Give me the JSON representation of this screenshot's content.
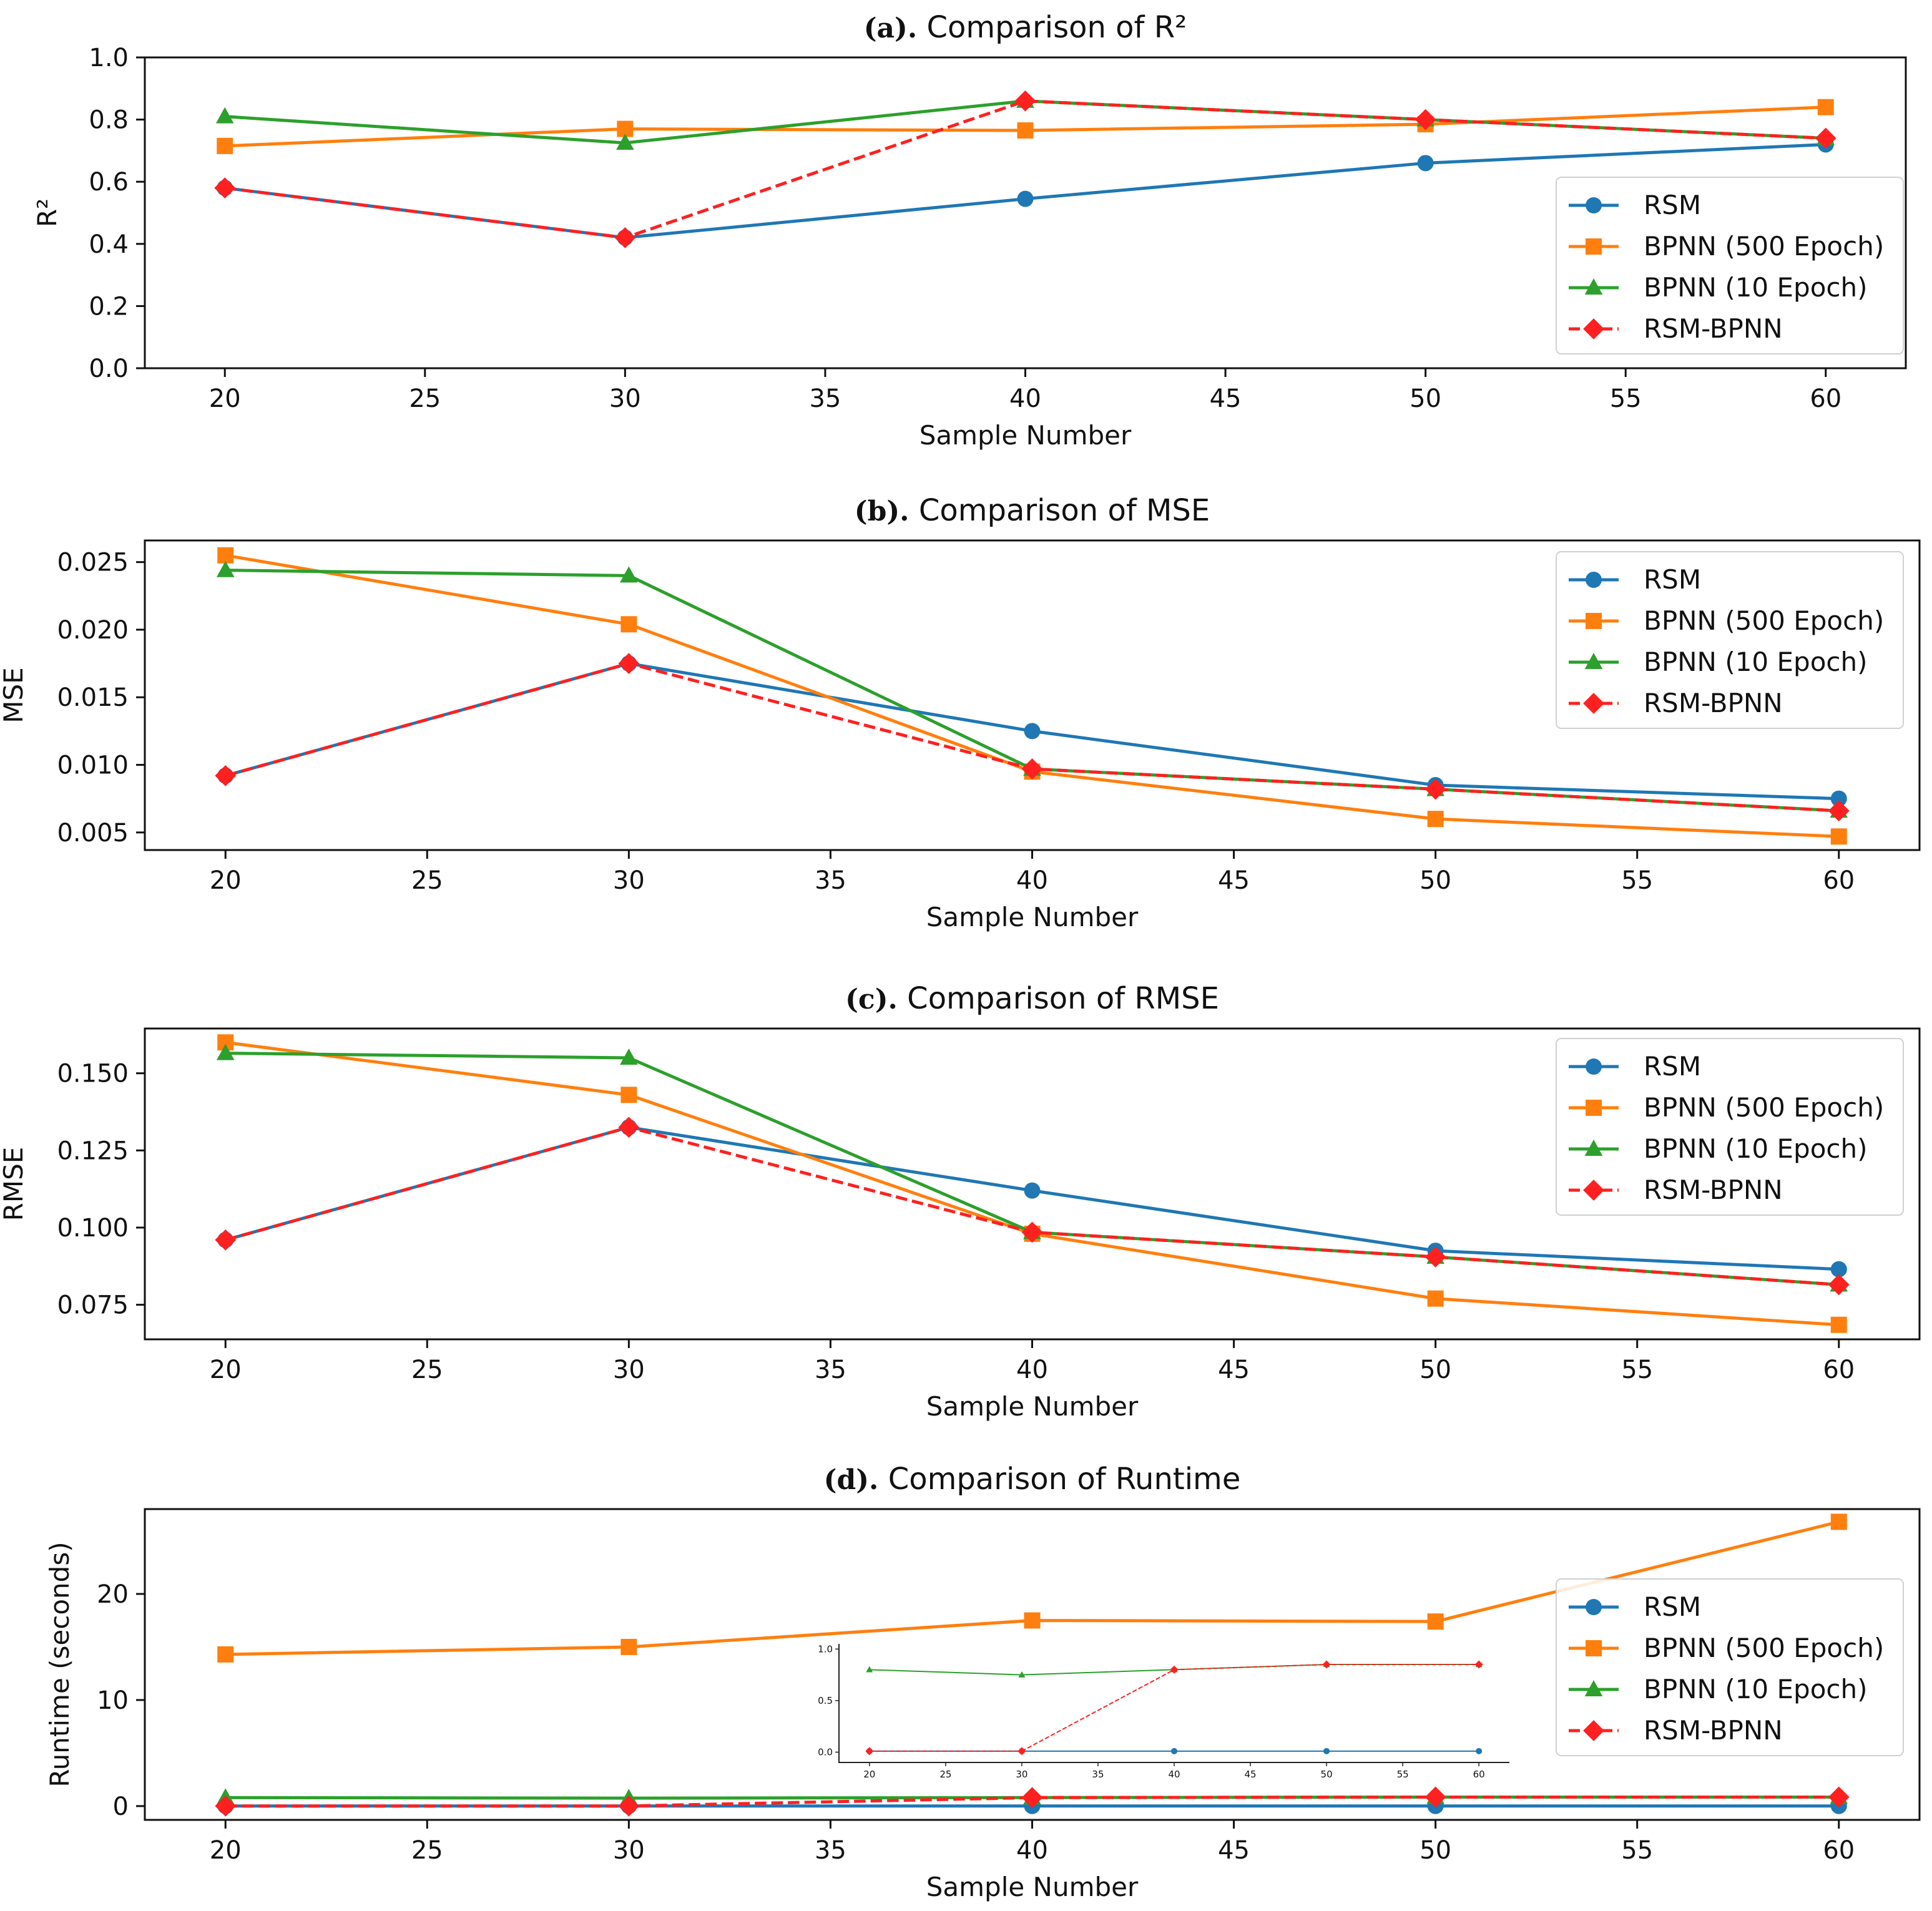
{
  "colors": {
    "RSM": "#1f77b4",
    "BPNN (500 Epoch)": "#ff7f0e",
    "BPNN (10 Epoch)": "#2ca02c",
    "RSM-BPNN": "#ff2020"
  },
  "chart_data": [
    {
      "type": "line",
      "title_prefix": "(a).",
      "title": "Comparison of R²",
      "xlabel": "Sample Number",
      "ylabel": "R²",
      "x": [
        20,
        30,
        40,
        50,
        60
      ],
      "xlim": [
        18,
        62
      ],
      "ylim": [
        0.0,
        1.0
      ],
      "xticks": [
        20,
        25,
        30,
        35,
        40,
        45,
        50,
        55,
        60
      ],
      "yticks": [
        "0.0",
        "0.2",
        "0.4",
        "0.6",
        "0.8",
        "1.0"
      ],
      "legend_position": "lower-right",
      "series": [
        {
          "name": "RSM",
          "marker": "circle",
          "style": "solid",
          "values": [
            0.58,
            0.42,
            0.545,
            0.66,
            0.72
          ]
        },
        {
          "name": "BPNN (500 Epoch)",
          "marker": "square",
          "style": "solid",
          "values": [
            0.715,
            0.77,
            0.765,
            0.785,
            0.84
          ]
        },
        {
          "name": "BPNN (10 Epoch)",
          "marker": "triangle",
          "style": "solid",
          "values": [
            0.81,
            0.725,
            0.86,
            0.8,
            0.74
          ]
        },
        {
          "name": "RSM-BPNN",
          "marker": "diamond",
          "style": "dashed",
          "values": [
            0.58,
            0.42,
            0.86,
            0.8,
            0.74
          ]
        }
      ]
    },
    {
      "type": "line",
      "title_prefix": "(b).",
      "title": "Comparison of MSE",
      "xlabel": "Sample Number",
      "ylabel": "MSE",
      "x": [
        20,
        30,
        40,
        50,
        60
      ],
      "xlim": [
        18,
        62
      ],
      "ylim": [
        0.0037,
        0.0266
      ],
      "xticks": [
        20,
        25,
        30,
        35,
        40,
        45,
        50,
        55,
        60
      ],
      "yticks": [
        "0.005",
        "0.010",
        "0.015",
        "0.020",
        "0.025"
      ],
      "legend_position": "top-right",
      "series": [
        {
          "name": "RSM",
          "marker": "circle",
          "style": "solid",
          "values": [
            0.0092,
            0.0175,
            0.0125,
            0.0085,
            0.0075
          ]
        },
        {
          "name": "BPNN (500 Epoch)",
          "marker": "square",
          "style": "solid",
          "values": [
            0.0255,
            0.0204,
            0.0095,
            0.006,
            0.0047
          ]
        },
        {
          "name": "BPNN (10 Epoch)",
          "marker": "triangle",
          "style": "solid",
          "values": [
            0.0244,
            0.024,
            0.0097,
            0.0082,
            0.0066
          ]
        },
        {
          "name": "RSM-BPNN",
          "marker": "diamond",
          "style": "dashed",
          "values": [
            0.0092,
            0.0175,
            0.0097,
            0.0082,
            0.0066
          ]
        }
      ]
    },
    {
      "type": "line",
      "title_prefix": "(c).",
      "title": "Comparison of RMSE",
      "xlabel": "Sample Number",
      "ylabel": "RMSE",
      "x": [
        20,
        30,
        40,
        50,
        60
      ],
      "xlim": [
        18,
        62
      ],
      "ylim": [
        0.0638,
        0.1645
      ],
      "xticks": [
        20,
        25,
        30,
        35,
        40,
        45,
        50,
        55,
        60
      ],
      "yticks": [
        "0.075",
        "0.100",
        "0.125",
        "0.150"
      ],
      "legend_position": "top-right",
      "series": [
        {
          "name": "RSM",
          "marker": "circle",
          "style": "solid",
          "values": [
            0.096,
            0.1325,
            0.112,
            0.0925,
            0.0865
          ]
        },
        {
          "name": "BPNN (500 Epoch)",
          "marker": "square",
          "style": "solid",
          "values": [
            0.16,
            0.143,
            0.098,
            0.077,
            0.0685
          ]
        },
        {
          "name": "BPNN (10 Epoch)",
          "marker": "triangle",
          "style": "solid",
          "values": [
            0.1565,
            0.155,
            0.0985,
            0.0905,
            0.0815
          ]
        },
        {
          "name": "RSM-BPNN",
          "marker": "diamond",
          "style": "dashed",
          "values": [
            0.096,
            0.1325,
            0.0985,
            0.0905,
            0.0815
          ]
        }
      ]
    },
    {
      "type": "line",
      "title_prefix": "(d).",
      "title": "Comparison of Runtime",
      "xlabel": "Sample Number",
      "ylabel": "Runtime (seconds)",
      "x": [
        20,
        30,
        40,
        50,
        60
      ],
      "xlim": [
        18,
        62
      ],
      "ylim": [
        -1.3,
        28.0
      ],
      "xticks": [
        20,
        25,
        30,
        35,
        40,
        45,
        50,
        55,
        60
      ],
      "yticks": [
        "0",
        "10",
        "20"
      ],
      "legend_position": "right",
      "series": [
        {
          "name": "RSM",
          "marker": "circle",
          "style": "solid",
          "values": [
            0.01,
            0.01,
            0.01,
            0.01,
            0.01
          ]
        },
        {
          "name": "BPNN (500 Epoch)",
          "marker": "square",
          "style": "solid",
          "values": [
            14.3,
            15.0,
            17.5,
            17.4,
            26.8
          ]
        },
        {
          "name": "BPNN (10 Epoch)",
          "marker": "triangle",
          "style": "solid",
          "values": [
            0.8,
            0.75,
            0.8,
            0.85,
            0.85
          ]
        },
        {
          "name": "RSM-BPNN",
          "marker": "diamond",
          "style": "dashed",
          "values": [
            0.01,
            0.01,
            0.8,
            0.85,
            0.85
          ]
        }
      ],
      "inset": {
        "x": [
          20,
          30,
          40,
          50,
          60
        ],
        "xlim": [
          18,
          62
        ],
        "ylim": [
          -0.1,
          1.05
        ],
        "xticks": [
          20,
          25,
          30,
          35,
          40,
          45,
          50,
          55,
          60
        ],
        "yticks": [
          "0.0",
          "0.5",
          "1.0"
        ],
        "series": [
          {
            "name": "RSM",
            "marker": "circle",
            "style": "solid",
            "values": [
              0.01,
              0.01,
              0.01,
              0.01,
              0.01
            ]
          },
          {
            "name": "BPNN (10 Epoch)",
            "marker": "triangle",
            "style": "solid",
            "values": [
              0.8,
              0.75,
              0.8,
              0.85,
              0.85
            ]
          },
          {
            "name": "RSM-BPNN",
            "marker": "diamond",
            "style": "dashed",
            "values": [
              0.01,
              0.01,
              0.8,
              0.85,
              0.85
            ]
          }
        ]
      }
    }
  ]
}
